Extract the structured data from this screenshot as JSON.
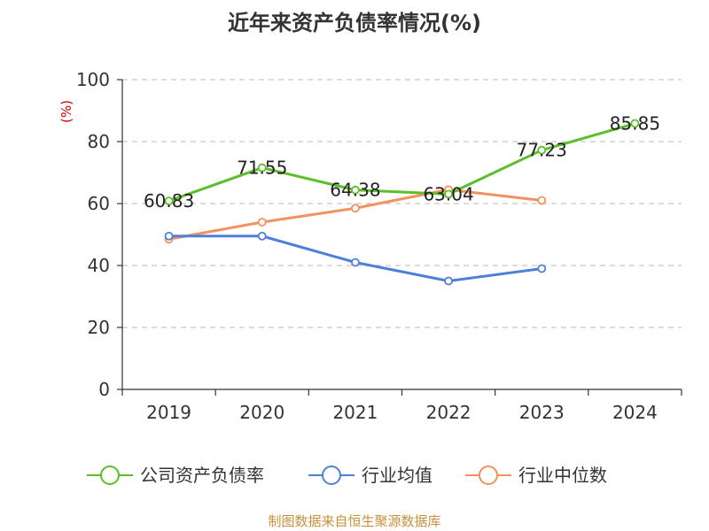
{
  "chart_data": {
    "type": "line",
    "title": "近年来资产负债率情况(%)",
    "ylabel": "(%)",
    "xlabel": "",
    "categories": [
      "2019",
      "2020",
      "2021",
      "2022",
      "2023",
      "2024"
    ],
    "ylim": [
      0,
      100
    ],
    "yticks": [
      0,
      20,
      40,
      60,
      80,
      100
    ],
    "grid": true,
    "legend_position": "bottom",
    "series": [
      {
        "name": "公司资产负债率",
        "color": "#5cbf2a",
        "values": [
          60.83,
          71.55,
          64.38,
          63.04,
          77.23,
          85.85
        ],
        "data_labels": [
          "60.83",
          "71.55",
          "64.38",
          "63.04",
          "77.23",
          "85.85"
        ]
      },
      {
        "name": "行业均值",
        "color": "#4e7fd9",
        "values": [
          49.5,
          49.5,
          41.0,
          35.0,
          39.0,
          null
        ]
      },
      {
        "name": "行业中位数",
        "color": "#f5915e",
        "values": [
          48.5,
          54.0,
          58.5,
          64.5,
          61.0,
          null
        ]
      }
    ]
  },
  "source": "制图数据来自恒生聚源数据库"
}
